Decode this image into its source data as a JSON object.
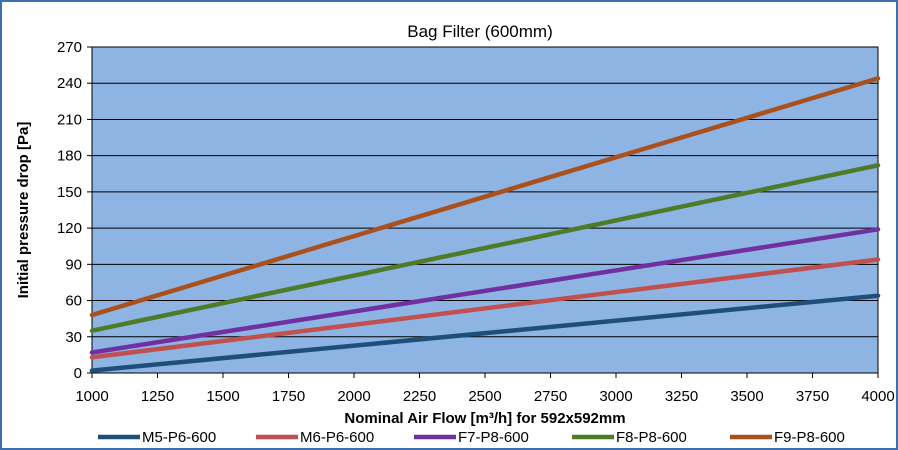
{
  "chart_data": {
    "type": "line",
    "title": "Bag Filter (600mm)",
    "xlabel": "Nominal Air Flow [m³/h] for 592x592mm",
    "ylabel": "Initial pressure drop [Pa]",
    "xlim": [
      1000,
      4000
    ],
    "ylim": [
      0,
      270
    ],
    "x_ticks": [
      1000,
      1250,
      1500,
      1750,
      2000,
      2250,
      2500,
      2750,
      3000,
      3250,
      3500,
      3750,
      4000
    ],
    "y_ticks": [
      0,
      30,
      60,
      90,
      120,
      150,
      180,
      210,
      240,
      270
    ],
    "grid": "horizontal",
    "plot_background": "#8db4e2",
    "legend_position": "bottom",
    "series": [
      {
        "name": "M5-P6-600",
        "color": "#1f4e79",
        "x": [
          1000,
          4000
        ],
        "y": [
          2,
          64
        ]
      },
      {
        "name": "M6-P6-600",
        "color": "#c0504d",
        "x": [
          1000,
          4000
        ],
        "y": [
          13,
          94
        ]
      },
      {
        "name": "F7-P8-600",
        "color": "#7030a0",
        "x": [
          1000,
          4000
        ],
        "y": [
          17,
          119
        ]
      },
      {
        "name": "F8-P8-600",
        "color": "#4f7a28",
        "x": [
          1000,
          4000
        ],
        "y": [
          35,
          172
        ]
      },
      {
        "name": "F9-P8-600",
        "color": "#a9501c",
        "x": [
          1000,
          4000
        ],
        "y": [
          48,
          244
        ]
      }
    ]
  }
}
